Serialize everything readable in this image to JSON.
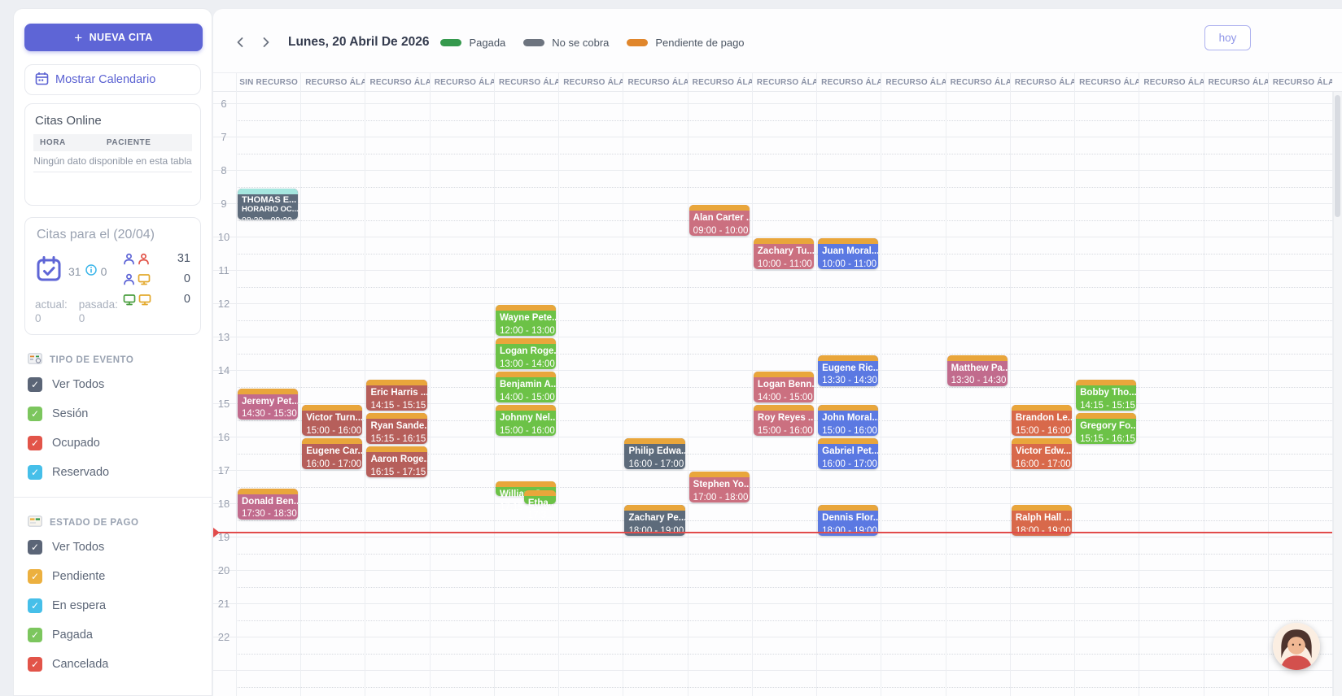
{
  "sidebar": {
    "new_appointment": "NUEVA CITA",
    "show_calendar": "Mostrar Calendario",
    "citas_online": {
      "title": "Citas Online",
      "columns": [
        "HORA",
        "PACIENTE"
      ],
      "empty": "Ningún dato disponible en esta tabla"
    },
    "day_summary": {
      "title": "Citas para el (20/04)",
      "total": "31",
      "info_value": "0",
      "rows": [
        {
          "icon": "people-icon",
          "value": "31"
        },
        {
          "icon": "person-screen-icon",
          "value": "0"
        },
        {
          "icon": "screens-icon",
          "value": "0"
        }
      ],
      "actual_label": "actual:",
      "actual_value": "0",
      "pasada_label": "pasada:",
      "pasada_value": "0"
    },
    "event_type": {
      "title": "TIPO DE EVENTO",
      "items": [
        {
          "label": "Ver Todos",
          "color": "#5b6577"
        },
        {
          "label": "Sesión",
          "color": "#7cc65e"
        },
        {
          "label": "Ocupado",
          "color": "#e25449"
        },
        {
          "label": "Reservado",
          "color": "#46bfe9"
        }
      ]
    },
    "payment_status": {
      "title": "ESTADO DE PAGO",
      "items": [
        {
          "label": "Ver Todos",
          "color": "#5b6577"
        },
        {
          "label": "Pendiente",
          "color": "#ecb03f"
        },
        {
          "label": "En espera",
          "color": "#46bfe9"
        },
        {
          "label": "Pagada",
          "color": "#7cc65e"
        },
        {
          "label": "Cancelada",
          "color": "#e25449"
        }
      ]
    }
  },
  "header": {
    "date": "Lunes, 20 Abril De 2026",
    "legend": [
      {
        "label": "Pagada",
        "color": "#35994d"
      },
      {
        "label": "No se cobra",
        "color": "#6d747f"
      },
      {
        "label": "Pendiente de pago",
        "color": "#e0862c"
      }
    ],
    "today_button": "hoy"
  },
  "calendar": {
    "columns": [
      "SIN RECURSO",
      "RECURSO ÁLAVA",
      "RECURSO ÁLAVA",
      "RECURSO ÁLAVA",
      "RECURSO ÁLAVA",
      "RECURSO ÁLAVA",
      "RECURSO ÁLAVA",
      "RECURSO ÁLAVA",
      "RECURSO ÁLAVA",
      "RECURSO ÁLAVA",
      "RECURSO ÁLAVA",
      "RECURSO ÁLAVA",
      "RECURSO ÁLAVA",
      "RECURSO ÁLAVA",
      "RECURSO ÁLAVA",
      "RECURSO ÁLAVA",
      "RECURSO ÁLAVA"
    ],
    "hours": [
      "6",
      "7",
      "8",
      "9",
      "10",
      "11",
      "12",
      "13",
      "14",
      "15",
      "16",
      "17",
      "18",
      "19",
      "20",
      "21",
      "22"
    ],
    "palette": {
      "green": "#6cc247",
      "blue": "#5b79e2",
      "rose": "#cb7080",
      "mauve": "#c16b8d",
      "red": "#b65f5b",
      "orangered": "#d8694b",
      "slate": "#5d6b7b",
      "strip_orange": "#e9a63b",
      "strip_cyan": "#a5e6df"
    },
    "now_time": 18.85,
    "events": [
      {
        "col": 0,
        "start": 8.5,
        "end": 9.5,
        "name": "THOMAS E...",
        "sub": "HORARIO OC...",
        "time": "08:30 - 09:30",
        "color": "slate",
        "strip": "strip_cyan",
        "tiny": true
      },
      {
        "col": 0,
        "start": 14.5,
        "end": 15.5,
        "name": "Jeremy Pet...",
        "time": "14:30 - 15:30",
        "color": "mauve",
        "strip": "strip_orange"
      },
      {
        "col": 0,
        "start": 17.5,
        "end": 18.5,
        "name": "Donald Ben...",
        "time": "17:30 - 18:30",
        "color": "mauve",
        "strip": "strip_orange"
      },
      {
        "col": 1,
        "start": 15,
        "end": 16,
        "name": "Victor Turn...",
        "time": "15:00 - 16:00",
        "color": "red",
        "strip": "strip_orange"
      },
      {
        "col": 1,
        "start": 16,
        "end": 17,
        "name": "Eugene Car...",
        "time": "16:00 - 17:00",
        "color": "red",
        "strip": "strip_orange"
      },
      {
        "col": 2,
        "start": 14.25,
        "end": 15.25,
        "name": "Eric Harris ...",
        "time": "14:15 - 15:15",
        "color": "red",
        "strip": "strip_orange"
      },
      {
        "col": 2,
        "start": 15.25,
        "end": 16.25,
        "name": "Ryan Sande...",
        "time": "15:15 - 16:15",
        "color": "red",
        "strip": "strip_orange"
      },
      {
        "col": 2,
        "start": 16.25,
        "end": 17.25,
        "name": "Aaron Roge...",
        "time": "16:15 - 17:15",
        "color": "red",
        "strip": "strip_orange"
      },
      {
        "col": 4,
        "start": 12,
        "end": 13,
        "name": "Wayne Pete...",
        "time": "12:00 - 13:00",
        "color": "green",
        "strip": "strip_orange"
      },
      {
        "col": 4,
        "start": 13,
        "end": 14,
        "name": "Logan Roge...",
        "time": "13:00 - 14:00",
        "color": "green",
        "strip": "strip_orange"
      },
      {
        "col": 4,
        "start": 14,
        "end": 15,
        "name": "Benjamin A...",
        "time": "14:00 - 15:00",
        "color": "green",
        "strip": "strip_orange"
      },
      {
        "col": 4,
        "start": 15,
        "end": 16,
        "name": "Johnny Nel...",
        "time": "15:00 - 16:00",
        "color": "green",
        "strip": "strip_orange"
      },
      {
        "col": 4,
        "start": 17.3,
        "end": 17.8,
        "name": "William S...",
        "time": "17:15 - 17:30",
        "color": "green",
        "strip": "strip_orange",
        "spill": true
      },
      {
        "col": 4,
        "start": 17.55,
        "end": 18.05,
        "name": "Etha...",
        "time": "17:3...",
        "color": "green",
        "strip": "strip_orange",
        "spill": true,
        "fx_left": 0.47,
        "fx_width": 0.53,
        "z": 3
      },
      {
        "col": 6,
        "start": 16,
        "end": 17,
        "name": "Philip Edwa...",
        "time": "16:00 - 17:00",
        "color": "slate",
        "strip": "strip_orange"
      },
      {
        "col": 6,
        "start": 18,
        "end": 19,
        "name": "Zachary Pe...",
        "time": "18:00 - 19:00",
        "color": "slate",
        "strip": "strip_orange"
      },
      {
        "col": 7,
        "start": 9,
        "end": 10,
        "name": "Alan Carter ...",
        "time": "09:00 - 10:00",
        "color": "rose",
        "strip": "strip_orange"
      },
      {
        "col": 7,
        "start": 17,
        "end": 18,
        "name": "Stephen Yo...",
        "time": "17:00 - 18:00",
        "color": "rose",
        "strip": "strip_orange"
      },
      {
        "col": 8,
        "start": 10,
        "end": 11,
        "name": "Zachary Tu...",
        "time": "10:00 - 11:00",
        "color": "rose",
        "strip": "strip_orange"
      },
      {
        "col": 8,
        "start": 14,
        "end": 15,
        "name": "Logan Benn...",
        "time": "14:00 - 15:00",
        "color": "rose",
        "strip": "strip_orange"
      },
      {
        "col": 8,
        "start": 15,
        "end": 16,
        "name": "Roy Reyes ...",
        "time": "15:00 - 16:00",
        "color": "rose",
        "strip": "strip_orange"
      },
      {
        "col": 9,
        "start": 10,
        "end": 11,
        "name": "Juan Moral...",
        "time": "10:00 - 11:00",
        "color": "blue",
        "strip": "strip_orange"
      },
      {
        "col": 9,
        "start": 13.5,
        "end": 14.5,
        "name": "Eugene Ric...",
        "time": "13:30 - 14:30",
        "color": "blue",
        "strip": "strip_orange"
      },
      {
        "col": 9,
        "start": 15,
        "end": 16,
        "name": "John Moral...",
        "time": "15:00 - 16:00",
        "color": "blue",
        "strip": "strip_orange"
      },
      {
        "col": 9,
        "start": 16,
        "end": 17,
        "name": "Gabriel Pet...",
        "time": "16:00 - 17:00",
        "color": "blue",
        "strip": "strip_orange"
      },
      {
        "col": 9,
        "start": 18,
        "end": 19,
        "name": "Dennis Flor...",
        "time": "18:00 - 19:00",
        "color": "blue",
        "strip": "strip_orange"
      },
      {
        "col": 11,
        "start": 13.5,
        "end": 14.5,
        "name": "Matthew Pa...",
        "time": "13:30 - 14:30",
        "color": "mauve",
        "strip": "strip_orange"
      },
      {
        "col": 12,
        "start": 15,
        "end": 16,
        "name": "Brandon Le...",
        "time": "15:00 - 16:00",
        "color": "orangered",
        "strip": "strip_orange"
      },
      {
        "col": 12,
        "start": 16,
        "end": 17,
        "name": "Victor Edw...",
        "time": "16:00 - 17:00",
        "color": "orangered",
        "strip": "strip_orange"
      },
      {
        "col": 12,
        "start": 18,
        "end": 19,
        "name": "Ralph Hall ...",
        "time": "18:00 - 19:00",
        "color": "orangered",
        "strip": "strip_orange"
      },
      {
        "col": 13,
        "start": 14.25,
        "end": 15.25,
        "name": "Bobby Tho...",
        "time": "14:15 - 15:15",
        "color": "green",
        "strip": "strip_orange"
      },
      {
        "col": 13,
        "start": 15.25,
        "end": 16.25,
        "name": "Gregory Fo...",
        "time": "15:15 - 16:15",
        "color": "green",
        "strip": "strip_orange"
      }
    ]
  }
}
